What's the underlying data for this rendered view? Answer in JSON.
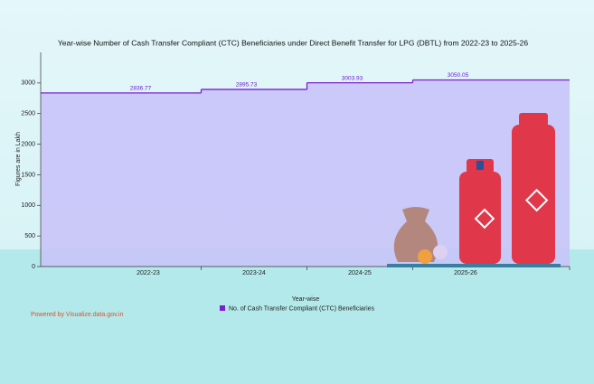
{
  "chart_data": {
    "type": "step-area",
    "title": "Year-wise Number of Cash Transfer Compliant (CTC) Beneficiaries under Direct Benefit Transfer for LPG (DBTL) from 2022-23 to 2025-26",
    "x_label": "Year-wise",
    "y_label": "Figures are in Lakh",
    "categories": [
      "2022-23",
      "2023-24",
      "2024-25",
      "2025-26"
    ],
    "series": [
      {
        "name": "No. of Cash Transfer Compliant (CTC) Beneficiaries",
        "color": "#7b1fd1",
        "values": [
          2836.77,
          2895.73,
          3003.93,
          3050.05
        ]
      }
    ],
    "ylim": [
      0,
      3500
    ],
    "yticks": [
      0,
      500,
      1000,
      1500,
      2000,
      2500,
      3000
    ],
    "credit": "Powered by Visualize.data.gov.in"
  }
}
